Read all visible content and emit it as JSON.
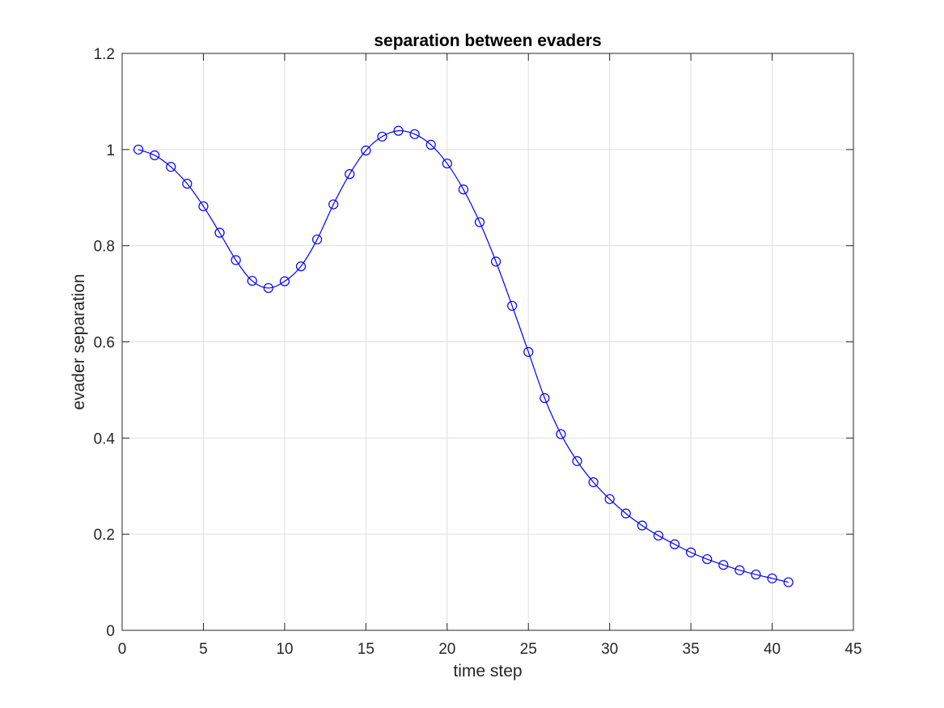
{
  "chart_data": {
    "type": "line",
    "title": "separation between evaders",
    "xlabel": "time step",
    "ylabel": "evader separation",
    "xlim": [
      0,
      45
    ],
    "ylim": [
      0,
      1.2
    ],
    "xticks": [
      0,
      5,
      10,
      15,
      20,
      25,
      30,
      35,
      40,
      45
    ],
    "yticks": [
      0,
      0.2,
      0.4,
      0.6,
      0.8,
      1,
      1.2
    ],
    "xtick_labels": [
      "0",
      "5",
      "10",
      "15",
      "20",
      "25",
      "30",
      "35",
      "40",
      "45"
    ],
    "ytick_labels": [
      "0",
      "0.2",
      "0.4",
      "0.6",
      "0.8",
      "1",
      "1.2"
    ],
    "grid": true,
    "series": [
      {
        "color": "#0000ff",
        "marker": "circle",
        "line_style": "solid",
        "x": [
          1,
          2,
          3,
          4,
          5,
          6,
          7,
          8,
          9,
          10,
          11,
          12,
          13,
          14,
          15,
          16,
          17,
          18,
          19,
          20,
          21,
          22,
          23,
          24,
          25,
          26,
          27,
          28,
          29,
          30,
          31,
          32,
          33,
          34,
          35,
          36,
          37,
          38,
          39,
          40,
          41
        ],
        "values": [
          1.0,
          0.988,
          0.964,
          0.929,
          0.882,
          0.827,
          0.77,
          0.727,
          0.712,
          0.726,
          0.757,
          0.813,
          0.886,
          0.949,
          0.998,
          1.027,
          1.039,
          1.032,
          1.01,
          0.971,
          0.917,
          0.849,
          0.767,
          0.675,
          0.579,
          0.483,
          0.408,
          0.352,
          0.308,
          0.273,
          0.243,
          0.218,
          0.197,
          0.179,
          0.162,
          0.148,
          0.136,
          0.125,
          0.116,
          0.108,
          0.1
        ]
      }
    ]
  }
}
